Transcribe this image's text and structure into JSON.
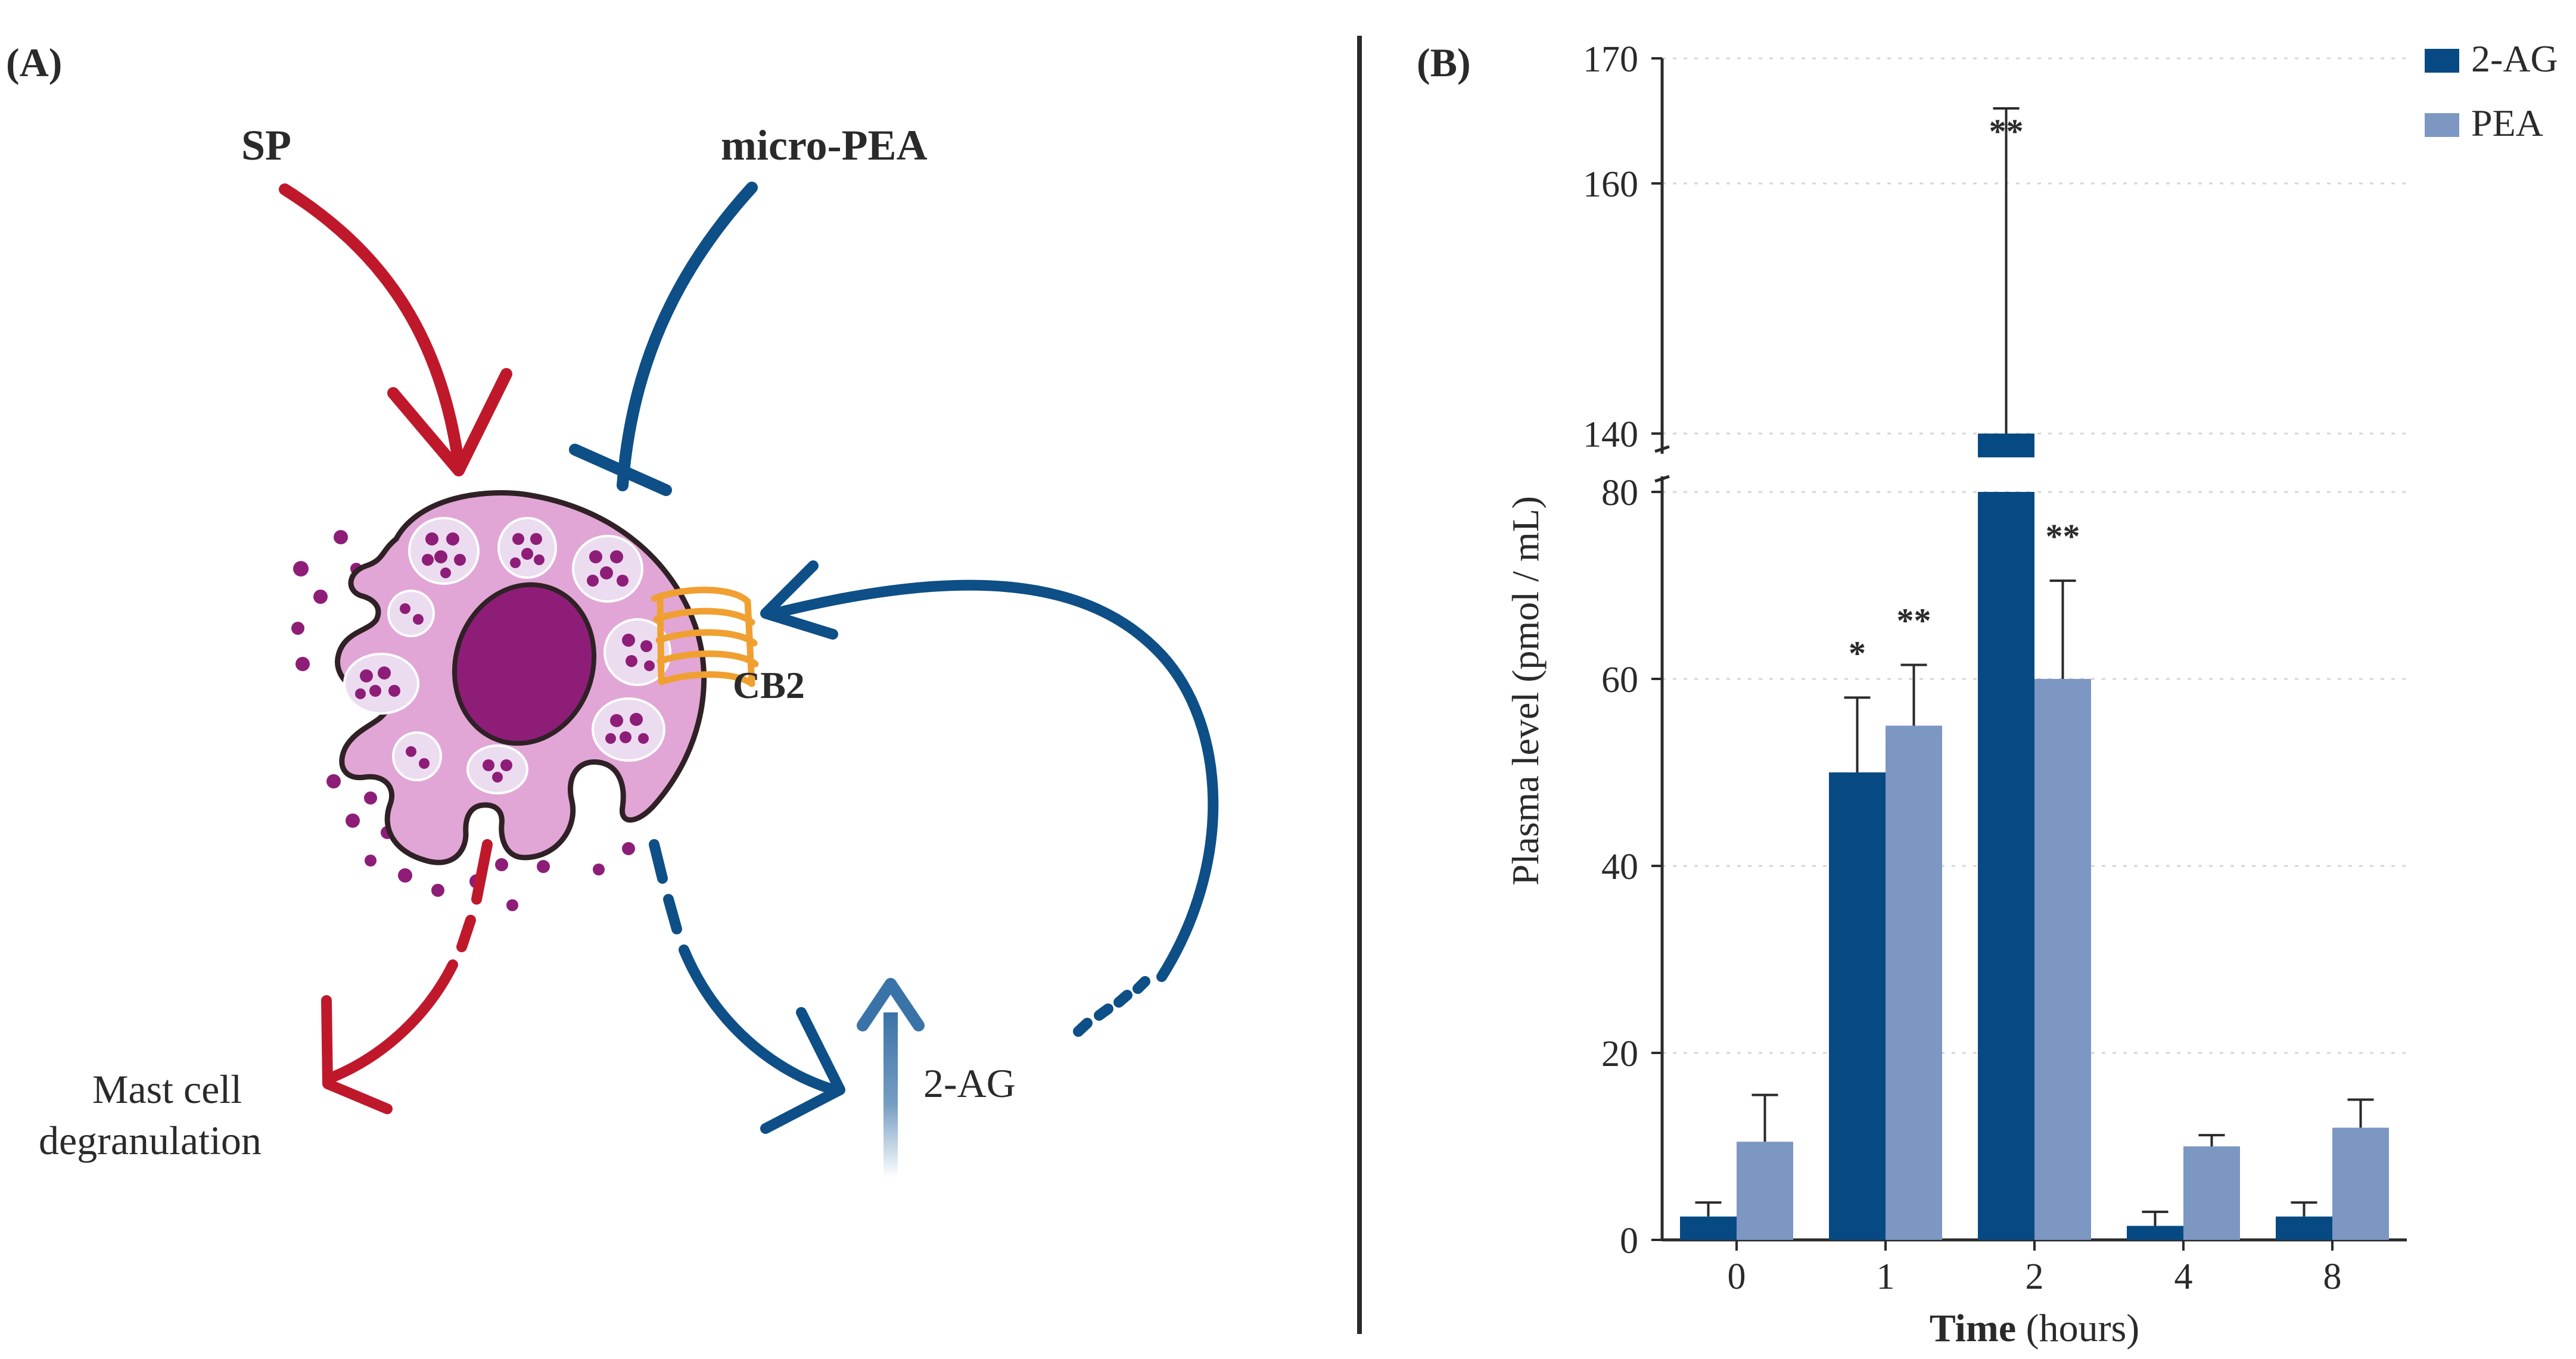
{
  "panel_a": {
    "label": "(A)",
    "sp_label": "SP",
    "micro_pea_label": "micro-PEA",
    "cb2_label": "CB2",
    "degranulation_line1": "Mast cell",
    "degranulation_line2": "degranulation",
    "two_ag_label": "2-AG",
    "colors": {
      "sp_arrow": "#c0182b",
      "pea_arrow": "#0d4f86",
      "cell_fill": "#e1a6d6",
      "nucleus": "#8e1d78",
      "granule": "#8e1d78",
      "vesicle": "#ecdcf0",
      "receptor": "#f0a030"
    }
  },
  "panel_b": {
    "label": "(B)"
  },
  "chart_data": {
    "type": "bar",
    "xlabel_bold": "Time",
    "xlabel_rest": " (hours)",
    "ylabel": "Plasma level (pmol / mL)",
    "categories": [
      "0",
      "1",
      "2",
      "4",
      "8"
    ],
    "axis_break": {
      "lower_range": [
        0,
        80
      ],
      "upper_range": [
        140,
        170
      ]
    },
    "lower_ticks": [
      "0",
      "20",
      "40",
      "60",
      "80"
    ],
    "upper_ticks": [
      "140",
      "160",
      "170"
    ],
    "series": [
      {
        "name": "2-AG",
        "color": "#074a83",
        "values": [
          2.5,
          50,
          140,
          1.5,
          2.5
        ],
        "errors": [
          1.5,
          8,
          26,
          1.5,
          1.5
        ],
        "significance": [
          "",
          "*",
          "**",
          "",
          ""
        ]
      },
      {
        "name": "PEA",
        "color": "#7c97c2",
        "values": [
          10.5,
          55,
          60,
          10,
          12
        ],
        "errors": [
          5,
          6.5,
          10.5,
          1.2,
          3
        ],
        "significance": [
          "",
          "**",
          "**",
          "",
          ""
        ]
      }
    ]
  }
}
